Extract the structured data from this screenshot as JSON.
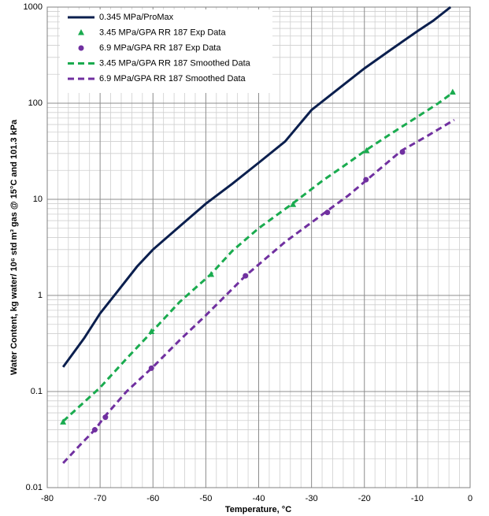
{
  "chart_data": {
    "type": "line",
    "xlabel": "Temperature, °C",
    "ylabel": "Water Content, kg water/ 10⁶ std m³ gas @ 15°C and 101.3 kPa",
    "xlim": [
      -80,
      0
    ],
    "xticks": [
      -80,
      -70,
      -60,
      -50,
      -40,
      -30,
      -20,
      -10,
      0
    ],
    "ylim": [
      0.01,
      1000
    ],
    "yticks": [
      0.01,
      0.1,
      1,
      10,
      100,
      1000
    ],
    "yscale": "log",
    "grid": true,
    "minor_grid": true,
    "legend": "upper left",
    "series": [
      {
        "name": "0.345 MPa/ProMax",
        "color": "#0b1f4e",
        "style": "solid",
        "x": [
          -77,
          -73,
          -70,
          -67,
          -63,
          -60,
          -55,
          -50,
          -45,
          -40,
          -35,
          -30,
          -25,
          -20,
          -15,
          -10,
          -7,
          -3.7
        ],
        "values": [
          0.18,
          0.36,
          0.65,
          1.05,
          2.0,
          3.0,
          5.2,
          9.0,
          14.5,
          24,
          40,
          85,
          140,
          230,
          360,
          560,
          720,
          1000
        ]
      },
      {
        "name": "3.45 MPa/GPA RR 187 Exp Data",
        "color": "#1aab4f",
        "style": "triangle",
        "x": [
          -77,
          -60.3,
          -49,
          -33.5,
          -19.6,
          -3.3
        ],
        "values": [
          0.048,
          0.42,
          1.65,
          8.8,
          32,
          130
        ]
      },
      {
        "name": "6.9 MPa/GPA RR 187 Exp Data",
        "color": "#7030a0",
        "style": "circle",
        "x": [
          -71,
          -69,
          -60.3,
          -42.5,
          -27,
          -19.7,
          -12.8
        ],
        "values": [
          0.04,
          0.054,
          0.175,
          1.6,
          7.3,
          16,
          31
        ]
      },
      {
        "name": "3.45 MPa/GPA RR 187 Smoothed Data",
        "color": "#1aab4f",
        "style": "dashed",
        "x": [
          -77,
          -70,
          -65,
          -60,
          -55,
          -49,
          -45,
          -40,
          -33.5,
          -28,
          -24,
          -19.5,
          -15,
          -10,
          -6,
          -3
        ],
        "values": [
          0.049,
          0.11,
          0.22,
          0.43,
          0.85,
          1.67,
          2.9,
          5.0,
          9.1,
          15.5,
          22,
          33,
          48,
          72,
          100,
          132
        ]
      },
      {
        "name": "6.9 MPa/GPA RR 187 Smoothed Data",
        "color": "#7030a0",
        "style": "dashed",
        "x": [
          -77,
          -74,
          -71,
          -69,
          -65,
          -60,
          -55,
          -50,
          -42.5,
          -35,
          -27,
          -23,
          -19.5,
          -13,
          -8,
          -3
        ],
        "values": [
          0.018,
          0.027,
          0.04,
          0.056,
          0.1,
          0.18,
          0.34,
          0.62,
          1.6,
          3.6,
          7.6,
          11,
          16,
          32,
          46,
          67
        ]
      }
    ]
  }
}
